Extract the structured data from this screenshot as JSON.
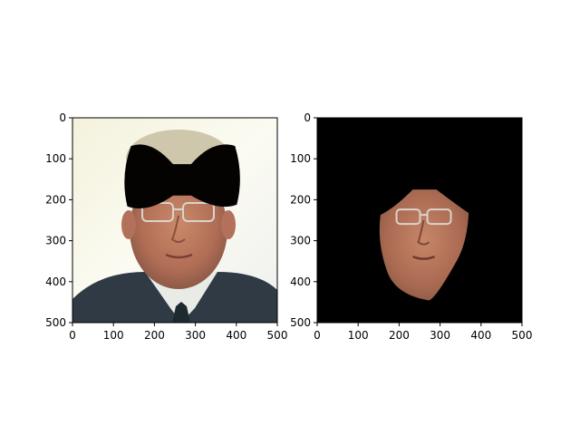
{
  "chart_data": [
    {
      "type": "image",
      "title": "",
      "xlabel": "",
      "ylabel": "",
      "xlim": [
        0,
        500
      ],
      "ylim": [
        500,
        0
      ],
      "xticks": [
        0,
        100,
        200,
        300,
        400,
        500
      ],
      "yticks": [
        0,
        100,
        200,
        300,
        400,
        500
      ],
      "x_tick_labels": [
        "0",
        "100",
        "200",
        "300",
        "400",
        "500"
      ],
      "y_tick_labels": [
        "0",
        "100",
        "200",
        "300",
        "400",
        "500"
      ],
      "content": "photo-with-black-bow-mask-over-eyes-forehead",
      "mask_shape": "bow",
      "mask_color": "#050202",
      "mask_region_x": [
        125,
        410
      ],
      "mask_region_y": [
        60,
        225
      ]
    },
    {
      "type": "image",
      "title": "",
      "xlabel": "",
      "ylabel": "",
      "xlim": [
        0,
        500
      ],
      "ylim": [
        500,
        0
      ],
      "xticks": [
        0,
        100,
        200,
        300,
        400,
        500
      ],
      "yticks": [
        0,
        100,
        200,
        300,
        400,
        500
      ],
      "x_tick_labels": [
        "0",
        "100",
        "200",
        "300",
        "400",
        "500"
      ],
      "y_tick_labels": [
        "0",
        "100",
        "200",
        "300",
        "400",
        "500"
      ],
      "content": "face-cutout-on-black-background",
      "background_color": "#000000",
      "face_region_x": [
        150,
        370
      ],
      "face_region_y": [
        175,
        445
      ]
    }
  ]
}
